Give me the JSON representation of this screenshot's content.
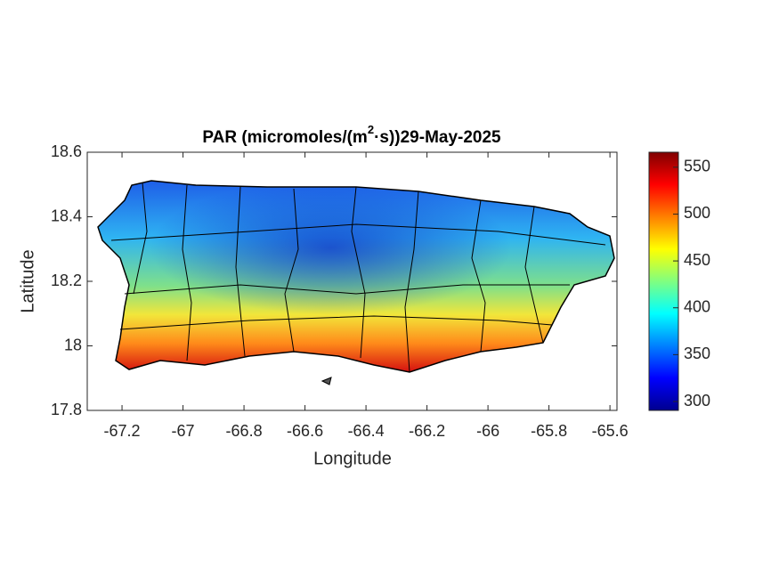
{
  "chart_data": {
    "type": "map",
    "title": {
      "before": "PAR (micromoles/(m",
      "superscript": "2",
      "after": "·s))29-May-2025"
    },
    "xlabel": "Longitude",
    "ylabel": "Latitude",
    "xlim": [
      -67.314,
      -65.577
    ],
    "ylim": [
      17.8,
      18.6
    ],
    "xticks": [
      -67.2,
      -67,
      -66.8,
      -66.6,
      -66.4,
      -66.2,
      -66,
      -65.8,
      -65.6
    ],
    "yticks": [
      17.8,
      18,
      18.2,
      18.4,
      18.6
    ],
    "colormap": "jet",
    "clim": [
      290.5,
      566
    ],
    "cticks": [
      300,
      350,
      400,
      450,
      500,
      550
    ]
  }
}
